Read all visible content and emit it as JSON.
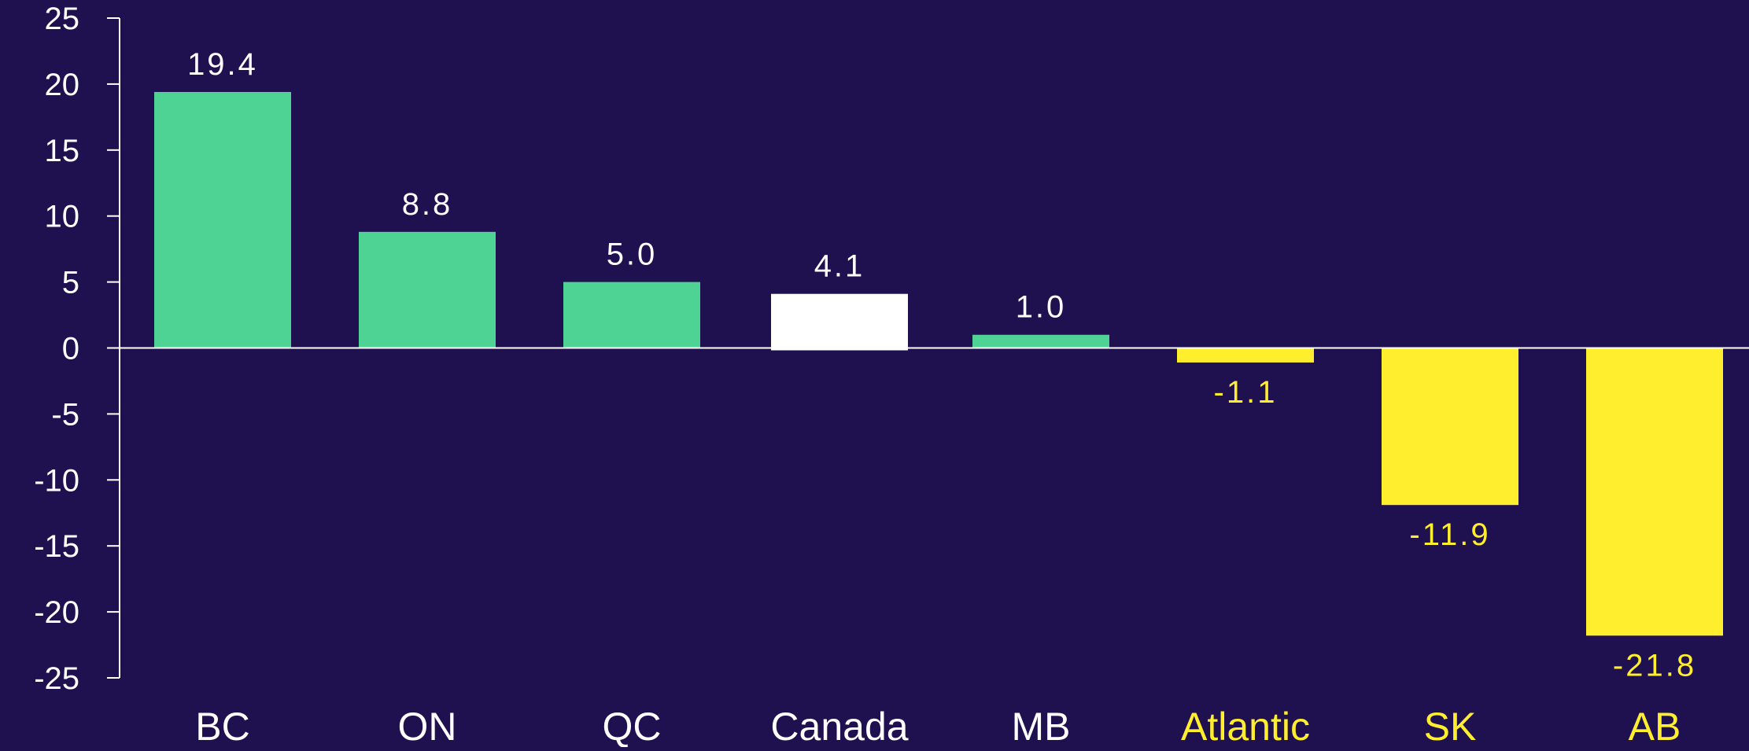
{
  "colors": {
    "background": "#1f104f",
    "positive": "#4ed394",
    "highlight": "#ffffff",
    "negative": "#ffee2e",
    "axis": "#ffffff",
    "text": "#ffffff"
  },
  "chart_data": {
    "type": "bar",
    "title": "",
    "xlabel": "",
    "ylabel": "",
    "ylim": [
      -25,
      25
    ],
    "yticks": [
      25,
      20,
      15,
      10,
      5,
      0,
      -5,
      -10,
      -15,
      -20,
      -25
    ],
    "grid": false,
    "categories": [
      "BC",
      "ON",
      "QC",
      "Canada",
      "MB",
      "Atlantic",
      "SK",
      "AB"
    ],
    "values": [
      19.4,
      8.8,
      5.0,
      4.1,
      1.0,
      -1.1,
      -11.9,
      -21.8
    ],
    "value_labels": [
      "19.4",
      "8.8",
      "5.0",
      "4.1",
      "1.0",
      "-1.1",
      "-11.9",
      "-21.8"
    ],
    "bar_colors": [
      "positive",
      "positive",
      "positive",
      "highlight",
      "positive",
      "negative",
      "negative",
      "negative"
    ],
    "category_label_colors": [
      "text",
      "text",
      "text",
      "text",
      "text",
      "negative",
      "negative",
      "negative"
    ],
    "value_label_colors": [
      "text",
      "text",
      "text",
      "text",
      "text",
      "negative",
      "negative",
      "negative"
    ]
  }
}
